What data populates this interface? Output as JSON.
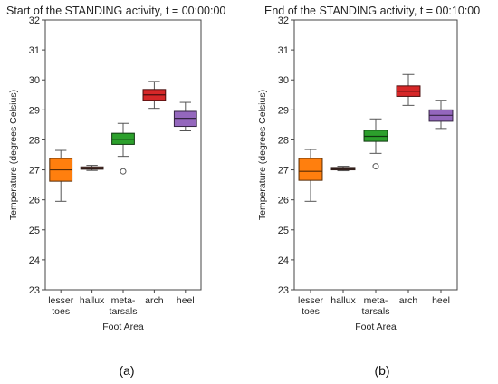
{
  "chart_data": [
    {
      "type": "box",
      "title": "Start of the STANDING activity, t = 00:00:00",
      "xlabel": "Foot Area",
      "ylabel": "Temperature (degrees Celsius)",
      "ylim": [
        23,
        32
      ],
      "yticks": [
        23,
        24,
        25,
        26,
        27,
        28,
        29,
        30,
        31,
        32
      ],
      "grid": false,
      "caption": "(a)",
      "categories": [
        {
          "label": [
            "lesser",
            "toes"
          ]
        },
        {
          "label": [
            "hallux"
          ]
        },
        {
          "label": [
            "meta-",
            "tarsals"
          ]
        },
        {
          "label": [
            "arch"
          ]
        },
        {
          "label": [
            "heel"
          ]
        }
      ],
      "boxes": [
        {
          "category": "lesser toes",
          "color": "#ff7f0e",
          "whisker_low": 25.95,
          "q1": 26.62,
          "median": 27.0,
          "q3": 27.38,
          "whisker_high": 27.65,
          "outliers": []
        },
        {
          "category": "hallux",
          "color": "#8c564b",
          "whisker_low": 26.98,
          "q1": 27.02,
          "median": 27.05,
          "q3": 27.1,
          "whisker_high": 27.15,
          "outliers": []
        },
        {
          "category": "metatarsals",
          "color": "#2ca02c",
          "whisker_low": 27.45,
          "q1": 27.85,
          "median": 28.02,
          "q3": 28.22,
          "whisker_high": 28.55,
          "outliers": [
            26.95
          ]
        },
        {
          "category": "arch",
          "color": "#d62728",
          "whisker_low": 29.05,
          "q1": 29.32,
          "median": 29.5,
          "q3": 29.68,
          "whisker_high": 29.95,
          "outliers": []
        },
        {
          "category": "heel",
          "color": "#9467bd",
          "whisker_low": 28.3,
          "q1": 28.45,
          "median": 28.72,
          "q3": 28.95,
          "whisker_high": 29.25,
          "outliers": []
        }
      ]
    },
    {
      "type": "box",
      "title": "End of the STANDING activity, t = 00:10:00",
      "xlabel": "Foot Area",
      "ylabel": "Temperature (degrees Celsius)",
      "ylim": [
        23,
        32
      ],
      "yticks": [
        23,
        24,
        25,
        26,
        27,
        28,
        29,
        30,
        31,
        32
      ],
      "grid": false,
      "caption": "(b)",
      "categories": [
        {
          "label": [
            "lesser",
            "toes"
          ]
        },
        {
          "label": [
            "hallux"
          ]
        },
        {
          "label": [
            "meta-",
            "tarsals"
          ]
        },
        {
          "label": [
            "arch"
          ]
        },
        {
          "label": [
            "heel"
          ]
        }
      ],
      "boxes": [
        {
          "category": "lesser toes",
          "color": "#ff7f0e",
          "whisker_low": 25.95,
          "q1": 26.65,
          "median": 26.95,
          "q3": 27.38,
          "whisker_high": 27.68,
          "outliers": []
        },
        {
          "category": "hallux",
          "color": "#8c564b",
          "whisker_low": 26.97,
          "q1": 27.0,
          "median": 27.03,
          "q3": 27.08,
          "whisker_high": 27.12,
          "outliers": []
        },
        {
          "category": "metatarsals",
          "color": "#2ca02c",
          "whisker_low": 27.55,
          "q1": 27.95,
          "median": 28.12,
          "q3": 28.32,
          "whisker_high": 28.7,
          "outliers": [
            27.12
          ]
        },
        {
          "category": "arch",
          "color": "#d62728",
          "whisker_low": 29.15,
          "q1": 29.45,
          "median": 29.62,
          "q3": 29.8,
          "whisker_high": 30.18,
          "outliers": []
        },
        {
          "category": "heel",
          "color": "#9467bd",
          "whisker_low": 28.38,
          "q1": 28.62,
          "median": 28.82,
          "q3": 29.0,
          "whisker_high": 29.32,
          "outliers": []
        }
      ]
    }
  ]
}
